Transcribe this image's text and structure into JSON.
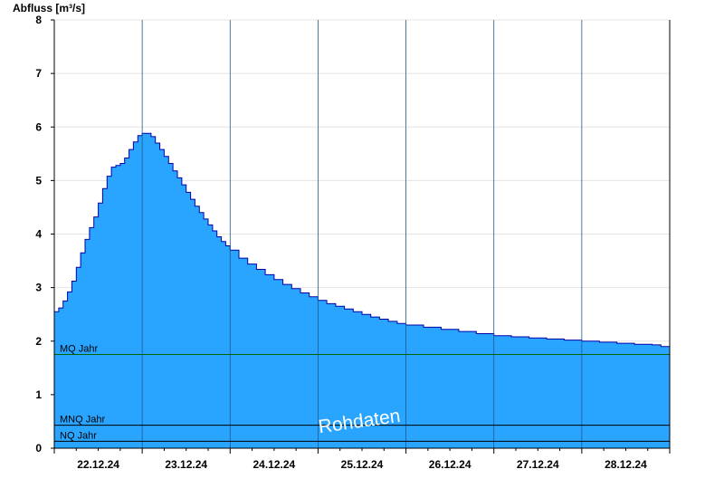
{
  "chart_data": {
    "type": "area",
    "ylabel": "Abfluss [m³/s]",
    "ylim": [
      0,
      8
    ],
    "yticks": [
      0,
      1,
      2,
      3,
      4,
      5,
      6,
      7,
      8
    ],
    "xlim": [
      0,
      7
    ],
    "day_labels": [
      "22.12.24",
      "23.12.24",
      "24.12.24",
      "25.12.24",
      "26.12.24",
      "27.12.24",
      "28.12.24"
    ],
    "grid": true,
    "fill_color": "#2aa5ff",
    "line_color": "#0000aa",
    "series": [
      {
        "x": [
          0,
          0.05,
          0.1,
          0.15,
          0.2,
          0.25,
          0.3,
          0.35,
          0.4,
          0.45,
          0.5,
          0.55,
          0.6,
          0.65,
          0.7,
          0.75,
          0.8,
          0.85,
          0.9,
          0.95,
          1.0,
          1.05,
          1.1,
          1.15,
          1.2,
          1.25,
          1.3,
          1.35,
          1.4,
          1.45,
          1.5,
          1.55,
          1.6,
          1.65,
          1.7,
          1.75,
          1.8,
          1.85,
          1.9,
          1.95,
          2.0,
          2.1,
          2.2,
          2.3,
          2.4,
          2.5,
          2.6,
          2.7,
          2.8,
          2.9,
          3.0,
          3.1,
          3.2,
          3.3,
          3.4,
          3.5,
          3.6,
          3.7,
          3.8,
          3.9,
          4.0,
          4.2,
          4.4,
          4.6,
          4.8,
          5.0,
          5.2,
          5.4,
          5.6,
          5.8,
          6.0,
          6.2,
          6.4,
          6.6,
          6.8,
          6.9,
          7.0
        ],
        "values": [
          2.55,
          2.62,
          2.75,
          2.92,
          3.12,
          3.38,
          3.65,
          3.9,
          4.12,
          4.32,
          4.58,
          4.85,
          5.08,
          5.25,
          5.28,
          5.32,
          5.42,
          5.58,
          5.72,
          5.84,
          5.88,
          5.88,
          5.82,
          5.7,
          5.58,
          5.45,
          5.32,
          5.18,
          5.05,
          4.92,
          4.78,
          4.65,
          4.52,
          4.4,
          4.28,
          4.17,
          4.06,
          3.95,
          3.86,
          3.78,
          3.7,
          3.55,
          3.44,
          3.34,
          3.24,
          3.15,
          3.06,
          2.98,
          2.9,
          2.83,
          2.76,
          2.7,
          2.65,
          2.6,
          2.55,
          2.5,
          2.45,
          2.41,
          2.37,
          2.33,
          2.3,
          2.26,
          2.22,
          2.18,
          2.14,
          2.1,
          2.08,
          2.06,
          2.04,
          2.02,
          2.0,
          1.98,
          1.96,
          1.94,
          1.93,
          1.9,
          1.88
        ]
      }
    ],
    "reference_lines": [
      {
        "label": "MQ Jahr",
        "value": 1.75,
        "color": "#006600"
      },
      {
        "label": "MNQ Jahr",
        "value": 0.43,
        "color": "#000000"
      },
      {
        "label": "NQ Jahr",
        "value": 0.13,
        "color": "#000000"
      }
    ],
    "watermark": "Rohdaten"
  }
}
